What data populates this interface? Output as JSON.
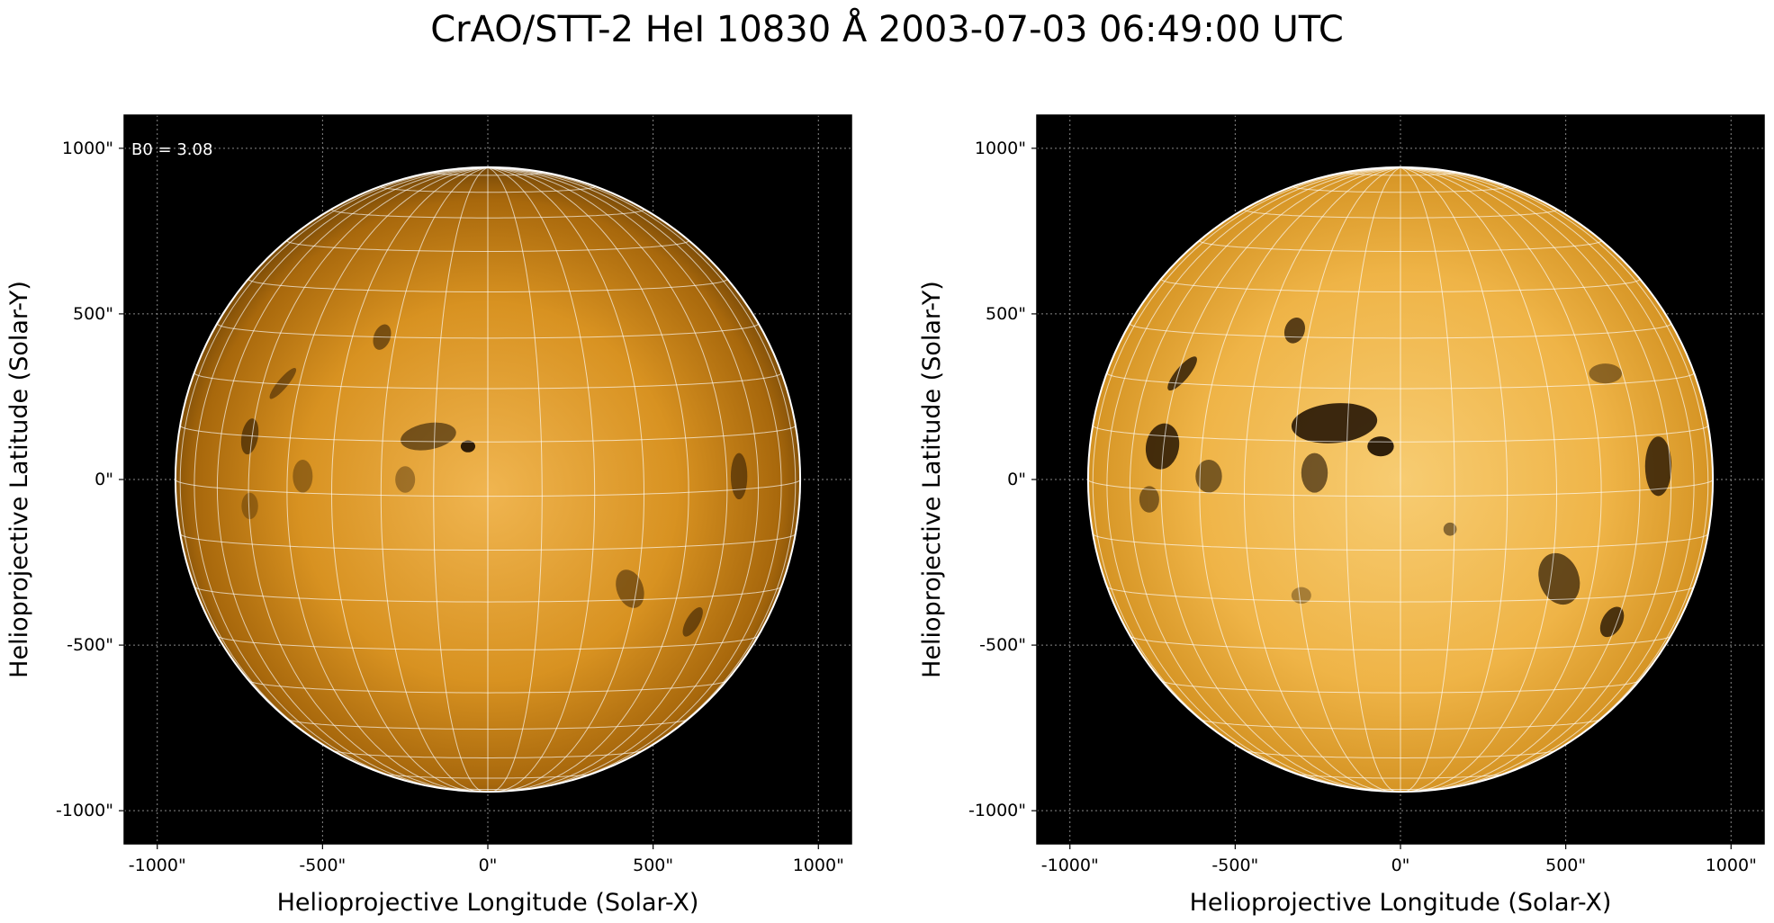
{
  "title": "CrAO/STT-2 HeI 10830 Å 2003-07-03 06:49:00 UTC",
  "colors": {
    "background": "#000000",
    "disk_light": "#f6c565",
    "disk_mid": "#d9901a",
    "disk_edge": "#5a3604",
    "grid": "#ffffff",
    "frame_grid": "#888888"
  },
  "panels": [
    {
      "id": "left",
      "annotation": "B0 = 3.08",
      "xlabel": "Helioprojective Longitude (Solar-X)",
      "ylabel": "Helioprojective Latitude (Solar-Y)",
      "x_ticks": [
        "-1000\"",
        "-500\"",
        "0\"",
        "500\"",
        "1000\""
      ],
      "y_ticks": [
        "1000\"",
        "500\"",
        "0\"",
        "-500\"",
        "-1000\""
      ],
      "tick_values": [
        -1000,
        -500,
        0,
        500,
        1000
      ],
      "solar_radius_arcsec": 945,
      "xlim": [
        -1100,
        1100
      ],
      "ylim": [
        -1100,
        1100
      ]
    },
    {
      "id": "right",
      "annotation": "",
      "xlabel": "Helioprojective Longitude (Solar-X)",
      "ylabel": "Helioprojective Latitude (Solar-Y)",
      "x_ticks": [
        "-1000\"",
        "-500\"",
        "0\"",
        "500\"",
        "1000\""
      ],
      "y_ticks": [
        "1000\"",
        "500\"",
        "0\"",
        "-500\"",
        "-1000\""
      ],
      "tick_values": [
        -1000,
        -500,
        0,
        500,
        1000
      ],
      "solar_radius_arcsec": 945,
      "xlim": [
        -1100,
        1100
      ],
      "ylim": [
        -1100,
        1100
      ]
    }
  ]
}
